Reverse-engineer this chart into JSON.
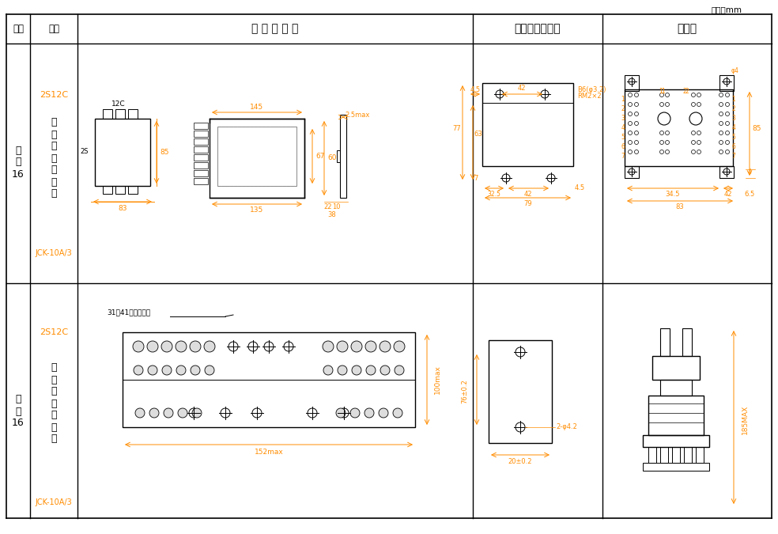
{
  "title_unit": "单位：mm",
  "col_headers": [
    "图号",
    "结构",
    "外 形 尺 寸 图",
    "安装开孔尺寸图",
    "端子图"
  ],
  "row1_struct": "2S12C\n\n凸\n出\n式\n板\n后\n接\n线",
  "row1_code": "JCK-10A/3",
  "row1_label": "附\n图\n16",
  "row2_struct": "2S12C\n\n凸\n出\n式\n板\n前\n接\n线",
  "row2_code": "JCK-10A/3",
  "row2_label": "附\n图\n16",
  "orange_color": "#FF8C00",
  "blue_color": "#1F4E79",
  "line_color": "#000000",
  "dim_color": "#FF8C00",
  "draw_color": "#333333"
}
